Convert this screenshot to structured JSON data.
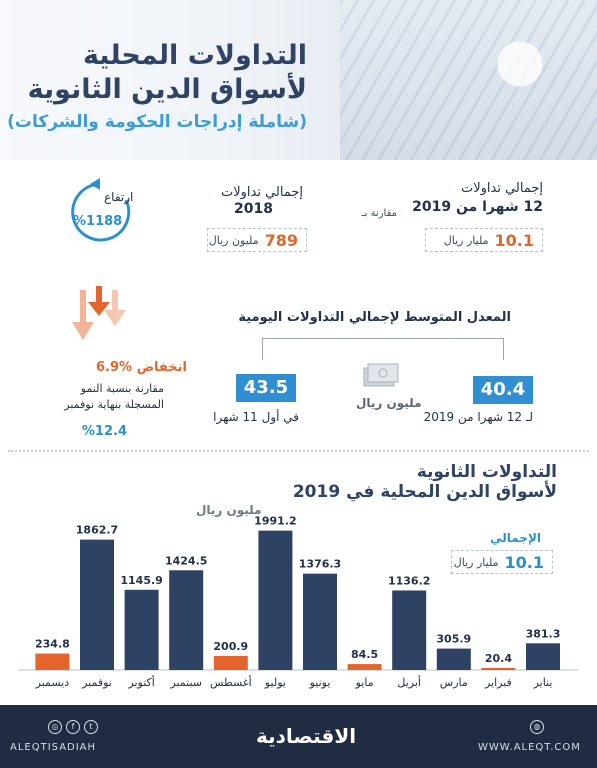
{
  "header": {
    "title_line1": "التداولات المحلية",
    "title_line2": "لأسواق الدين الثانوية",
    "subtitle": "(شاملة إدراجات الحكومة والشركات)"
  },
  "stats": {
    "total_12m_label_1": "إجمالي تداولات",
    "total_12m_label_2": "12 شهرا من 2019",
    "total_12m_value": "10.1",
    "total_12m_unit": "مليار ريال",
    "compare_label": "مقارنة بـ",
    "total_2018_label_1": "إجمالي تداولات",
    "total_2018_label_2": "2018",
    "total_2018_value": "789",
    "total_2018_unit": "مليون ريال",
    "rise_label": "ارتفاع",
    "rise_value": "%1188"
  },
  "decline": {
    "label": "انخفاض %6.9",
    "note_line1": "مقارنة بنسبة النمو",
    "note_line2": "المسجلة بنهاية نوفمبر",
    "note_value": "%12.4"
  },
  "daily_avg": {
    "title": "المعدل المتوسط لإجمالي التداولات اليومية",
    "value_12m": "40.4",
    "label_12m": "لـ 12 شهرا من 2019",
    "value_11m": "43.5",
    "label_11m": "في أول 11 شهرا",
    "unit": "مليون ريال"
  },
  "chart_section": {
    "title_line1": "التداولات الثانوية",
    "title_line2": "لأسواق الدين المحلية في 2019",
    "unit_label": "مليون ريال",
    "total_label": "الإجمالي",
    "total_value": "10.1",
    "total_unit": "مليار ريال"
  },
  "chart_data": {
    "type": "bar",
    "title": "التداولات الثانوية لأسواق الدين المحلية في 2019",
    "ylabel": "مليون ريال",
    "categories": [
      "يناير",
      "فبراير",
      "مارس",
      "أبريل",
      "مايو",
      "يونيو",
      "يوليو",
      "أغسطس",
      "سبتمبر",
      "أكتوبر",
      "نوفمبر",
      "ديسمبر"
    ],
    "values": [
      381.3,
      20.4,
      305.9,
      1136.2,
      84.5,
      1376.3,
      1991.2,
      200.9,
      1424.5,
      1145.9,
      1862.7,
      234.8
    ],
    "value_labels": [
      "381.3",
      "20.4",
      "305.9",
      "1136.2",
      "84.5",
      "1376.3",
      "1991.2",
      "200.9",
      "1424.5",
      "1145.9",
      "1862.7",
      "234.8"
    ],
    "highlight": [
      false,
      true,
      false,
      false,
      true,
      false,
      false,
      true,
      false,
      false,
      false,
      true
    ],
    "colors": {
      "normal": "#2e4363",
      "highlight": "#e3652b"
    },
    "ylim": [
      0,
      2000
    ],
    "grid": false
  },
  "footer": {
    "handle": "ALEQTISADIAH",
    "logo": "الاقتصادية",
    "website": "WWW.ALEQT.COM"
  },
  "icons": {
    "rise": "circular-arrow-icon",
    "decline": "down-arrows-icon",
    "money": "money-stack-icon",
    "social": [
      "instagram-icon",
      "facebook-icon",
      "twitter-icon"
    ],
    "globe": "globe-icon"
  }
}
